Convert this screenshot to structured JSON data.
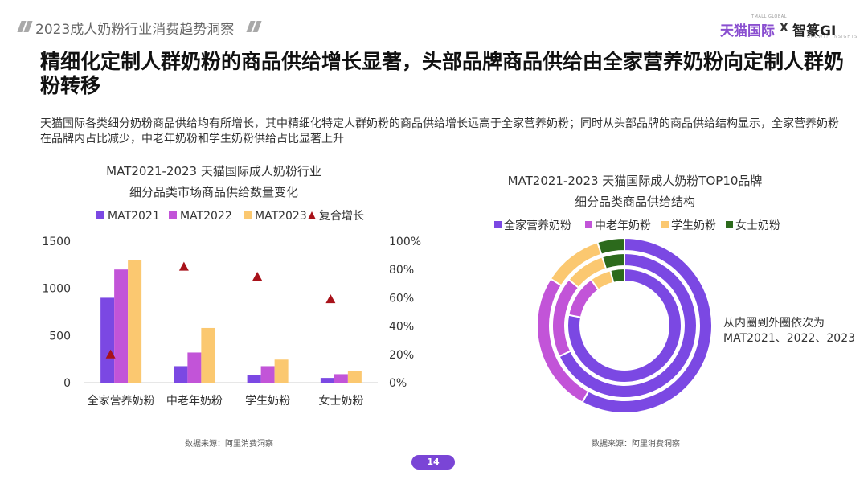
{
  "header": {
    "report_title": "2023成人奶粉行业消费趋势洞察",
    "logo_tmall": "天猫国际",
    "logo_tmall_small": "TMALL GLOBAL",
    "logo_x": "X",
    "logo_gi": "智篆GI",
    "logo_gi_small": "GROWTH INSIGHTS"
  },
  "headline": "精细化定制人群奶粉的商品供给增长显著，头部品牌商品供给由全家营养奶粉向定制人群奶粉转移",
  "description": "天猫国际各类细分奶粉商品供给均有所增长，其中精细化特定人群奶粉的商品供给增长远高于全家营养奶粉；同时从头部品牌的商品供给结构显示，全家营养奶粉在品牌内占比减少，中老年奶粉和学生奶粉供给占比显著上升",
  "footer": {
    "page_number": "14"
  },
  "colors": {
    "purple": "#7b48e3",
    "magenta": "#c254d8",
    "yellow": "#fbc870",
    "green": "#2c6a1c",
    "triangle": "#a8121a"
  },
  "chart_data": [
    {
      "type": "bar",
      "title_line1": "MAT2021-2023 天猫国际成人奶粉行业",
      "title_line2": "细分品类市场商品供给数量变化",
      "categories": [
        "全家营养奶粉",
        "中老年奶粉",
        "学生奶粉",
        "女士奶粉"
      ],
      "series": [
        {
          "name": "MAT2021",
          "values": [
            900,
            175,
            80,
            50
          ],
          "color": "#7b48e3"
        },
        {
          "name": "MAT2022",
          "values": [
            1200,
            320,
            175,
            90
          ],
          "color": "#c254d8"
        },
        {
          "name": "MAT2023",
          "values": [
            1300,
            580,
            245,
            125
          ],
          "color": "#fbc870"
        }
      ],
      "secondary_series": {
        "name": "复合增长",
        "type": "scatter",
        "values": [
          20,
          82,
          75,
          59
        ],
        "color": "#a8121a"
      },
      "y_ticks": [
        "0",
        "500",
        "1000",
        "1500"
      ],
      "ylim": [
        0,
        1500
      ],
      "y2_ticks": [
        "0%",
        "20%",
        "40%",
        "60%",
        "80%",
        "100%"
      ],
      "y2lim": [
        0,
        100
      ],
      "legend_position": "top",
      "source": "数据来源：阿里消费洞察"
    },
    {
      "type": "pie",
      "subtype": "nested-donut",
      "title_line1": "MAT2021-2023 天猫国际成人奶粉TOP10品牌",
      "title_line2": "细分品类商品供给结构",
      "categories": [
        "全家营养奶粉",
        "中老年奶粉",
        "学生奶粉",
        "女士奶粉"
      ],
      "colors": [
        "#7b48e3",
        "#c254d8",
        "#fbc870",
        "#2c6a1c"
      ],
      "rings": [
        {
          "name": "MAT2021",
          "values": [
            78,
            12,
            6,
            4
          ]
        },
        {
          "name": "MAT2022",
          "values": [
            68,
            18,
            9,
            5
          ]
        },
        {
          "name": "MAT2023",
          "values": [
            58,
            26,
            11,
            5
          ]
        }
      ],
      "annotation_line1": "从内圈到外圈依次为",
      "annotation_line2": "MAT2021、2022、2023",
      "legend_position": "top",
      "source": "数据来源：阿里消费洞察"
    }
  ]
}
